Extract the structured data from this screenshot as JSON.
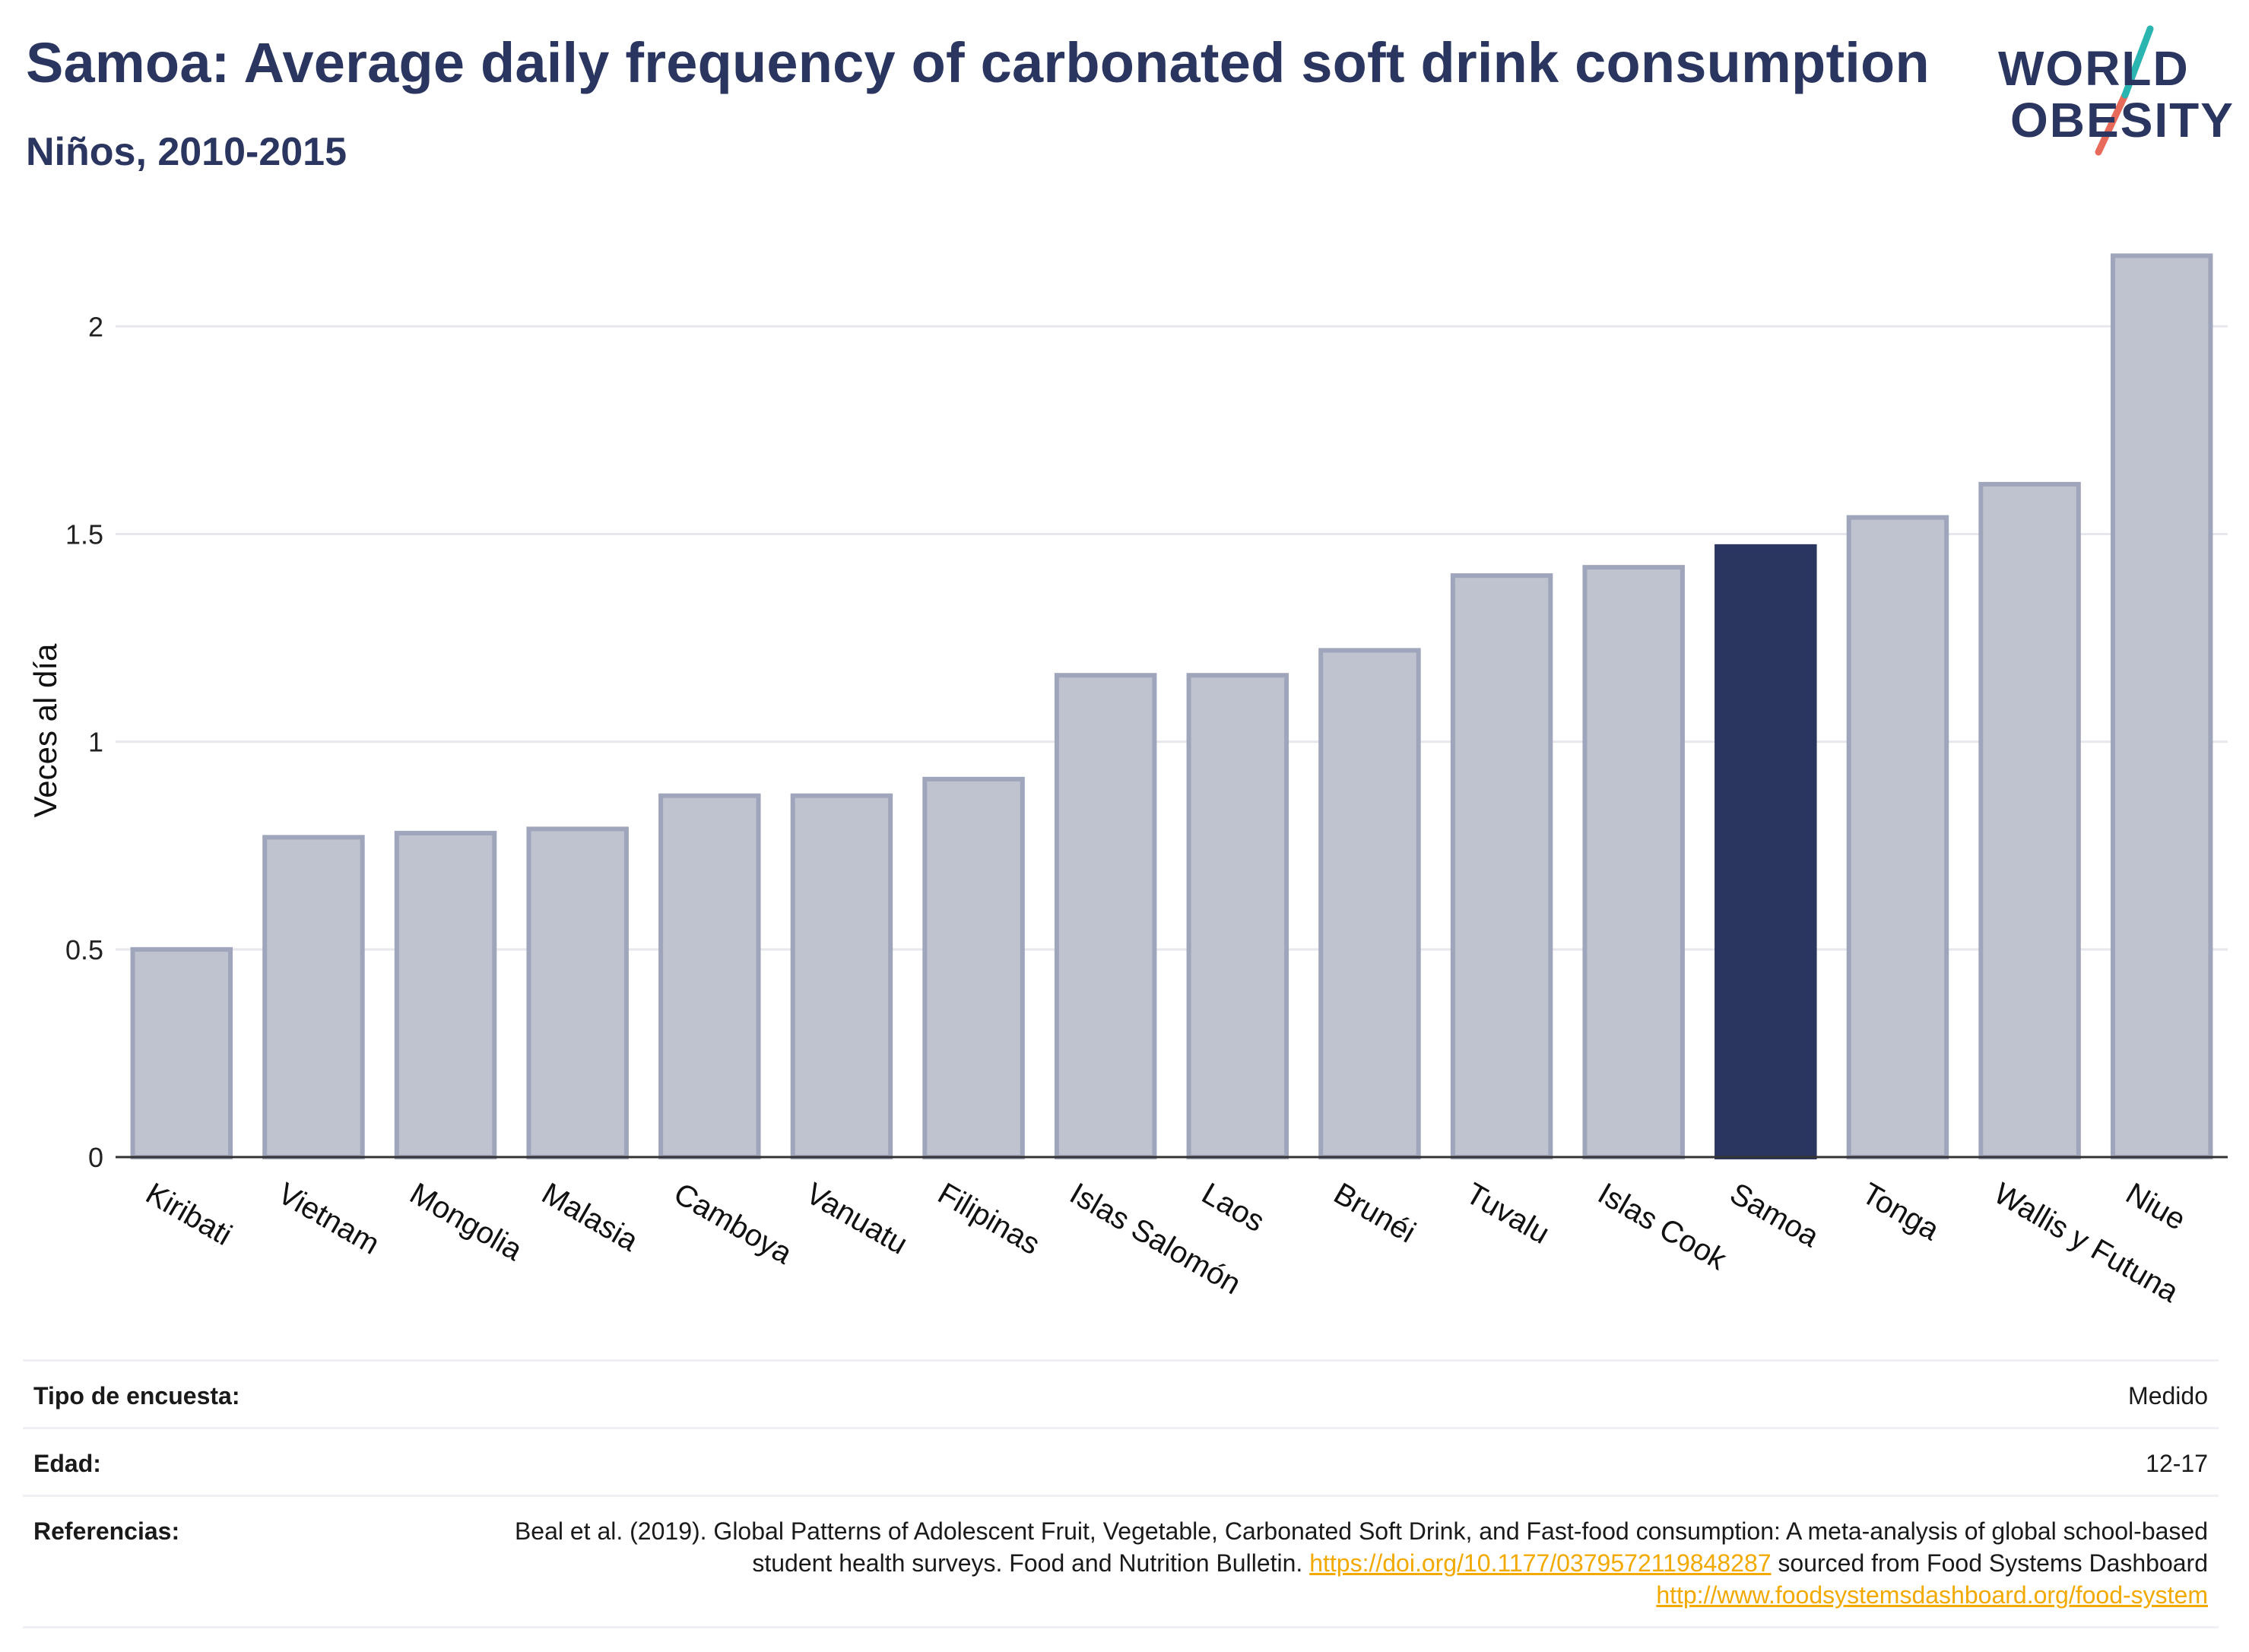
{
  "header": {
    "title": "Samoa: Average daily frequency of carbonated soft drink consumption",
    "subtitle": "Niños, 2010-2015"
  },
  "logo": {
    "line1": "WORLD",
    "line2": "OBESITY"
  },
  "colors": {
    "bar": "#bfc3cf",
    "bar_stroke": "#9fa5bb",
    "highlight": "#2a3560",
    "title": "#2a3560",
    "link": "#f2a900"
  },
  "chart_data": {
    "type": "bar",
    "categories": [
      "Kiribati",
      "Vietnam",
      "Mongolia",
      "Malasia",
      "Camboya",
      "Vanuatu",
      "Filipinas",
      "Islas Salomón",
      "Laos",
      "Brunéi",
      "Tuvalu",
      "Islas Cook",
      "Samoa",
      "Tonga",
      "Wallis y Futuna",
      "Niue"
    ],
    "values": [
      0.5,
      0.77,
      0.78,
      0.79,
      0.87,
      0.87,
      0.91,
      1.16,
      1.16,
      1.22,
      1.4,
      1.42,
      1.47,
      1.54,
      1.62,
      2.17
    ],
    "highlight": "Samoa",
    "xlabel": "",
    "ylabel": "Veces al día",
    "ylim": [
      0,
      2.2
    ],
    "yticks": [
      0,
      0.5,
      1,
      1.5,
      2
    ],
    "ytick_labels": [
      "0",
      "0.5",
      "1",
      "1.5",
      "2"
    ],
    "grid": true,
    "legend": "none"
  },
  "info": {
    "survey_label": "Tipo de encuesta:",
    "survey_value": "Medido",
    "age_label": "Edad:",
    "age_value": "12-17",
    "refs_label": "Referencias:",
    "refs_text_1": "Beal et al. (2019). Global Patterns of Adolescent Fruit, Vegetable, Carbonated Soft Drink, and Fast-food consumption: A meta-analysis of global school-based student health surveys. Food and Nutrition Bulletin.",
    "refs_link_1": "https://doi.org/10.1177/0379572119848287",
    "refs_text_2": "sourced from Food Systems Dashboard",
    "refs_link_2": "http://www.foodsystemsdashboard.org/food-system"
  }
}
